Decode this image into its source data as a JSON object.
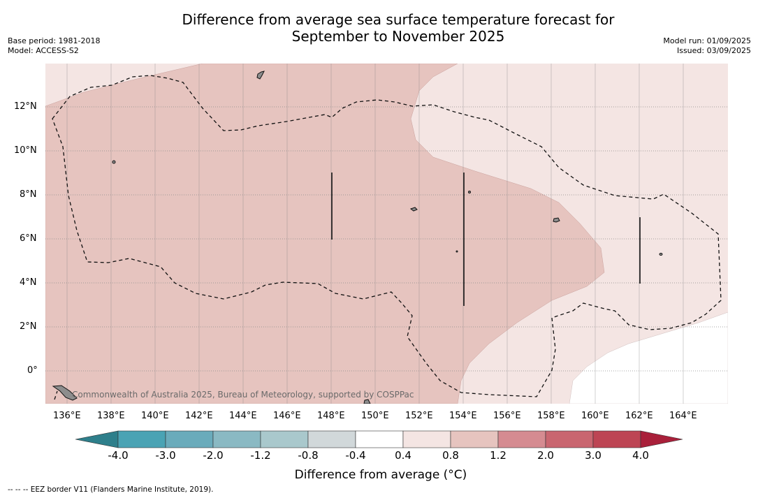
{
  "header": {
    "title_line1": "Difference from average sea surface temperature forecast for",
    "title_line2": "September to November 2025",
    "base_period": "Base period: 1981-2018",
    "model": "Model: ACCESS-S2",
    "model_run": "Model run: 01/09/2025",
    "issued": "Issued: 03/09/2025"
  },
  "map": {
    "copyright": "Commonwealth of Australia 2025, Bureau of Meteorology, supported by COSPPac",
    "lat_labels": [
      "12°N",
      "10°N",
      "8°N",
      "6°N",
      "4°N",
      "2°N",
      "0°"
    ],
    "lon_labels": [
      "136°E",
      "138°E",
      "140°E",
      "142°E",
      "144°E",
      "146°E",
      "148°E",
      "150°E",
      "152°E",
      "154°E",
      "156°E",
      "158°E",
      "160°E",
      "162°E",
      "164°E"
    ],
    "lon_range": [
      135,
      166
    ],
    "lat_range": [
      -1.5,
      14
    ]
  },
  "colorbar": {
    "tick_labels": [
      "-4.0",
      "-3.0",
      "-2.0",
      "-1.2",
      "-0.8",
      "-0.4",
      "0.4",
      "0.8",
      "1.2",
      "2.0",
      "3.0",
      "4.0"
    ],
    "colors": [
      "#2e7f8b",
      "#4aa3b4",
      "#6aabbb",
      "#8ab9c3",
      "#a9c8cc",
      "#d1d8da",
      "#ffffff",
      "#f4e5e3",
      "#e6c4bf",
      "#d58b91",
      "#c96670",
      "#bd4554",
      "#a9203a"
    ],
    "title": "Difference from average (°C)"
  },
  "footnote": "--  --  -- EEZ border V11 (Flanders Marine Institute, 2019)."
}
